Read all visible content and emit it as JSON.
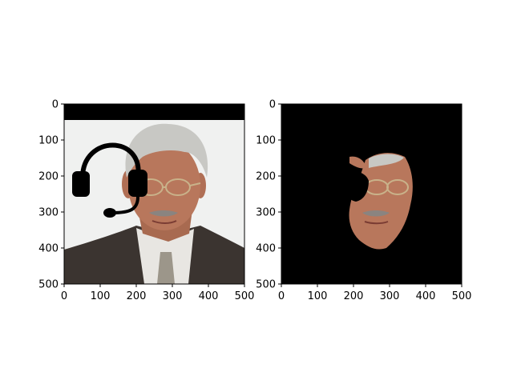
{
  "chart_data": [
    {
      "type": "image",
      "title": "",
      "xlabel": "",
      "ylabel": "",
      "xlim": [
        0,
        500
      ],
      "ylim": [
        500,
        0
      ],
      "xticks": [
        0,
        100,
        200,
        300,
        400,
        500
      ],
      "yticks": [
        0,
        100,
        200,
        300,
        400,
        500
      ],
      "content": "photo of a man's face with a black headset overlay and a black band across the top",
      "colors": {
        "background": "#f0f1f0",
        "suit": "#3b3430",
        "skin": "#b8775c",
        "hair": "#c8c8c4",
        "overlay": "#000000"
      }
    },
    {
      "type": "image",
      "title": "",
      "xlabel": "",
      "ylabel": "",
      "xlim": [
        0,
        500
      ],
      "ylim": [
        500,
        0
      ],
      "xticks": [
        0,
        100,
        200,
        300,
        400,
        500
      ],
      "yticks": [
        0,
        100,
        200,
        300,
        400,
        500
      ],
      "content": "segmented face region on a black background",
      "colors": {
        "background": "#000000",
        "skin": "#b8775c"
      }
    }
  ]
}
